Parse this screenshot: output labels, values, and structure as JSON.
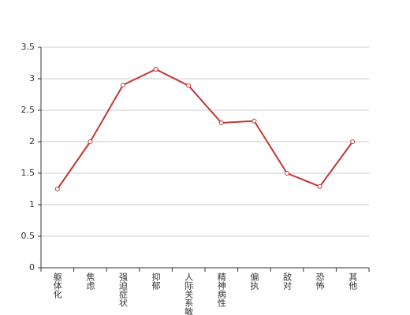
{
  "chart_data": {
    "type": "line",
    "categories": [
      "躯体化",
      "焦虑",
      "强迫症状",
      "抑郁",
      "人际关系敏感",
      "精神病性",
      "偏执",
      "敌对",
      "恐怖",
      "其他"
    ],
    "series": [
      {
        "name": null,
        "color": "#c23531",
        "values": [
          1.25,
          2.0,
          2.9,
          3.15,
          2.89,
          2.3,
          2.33,
          1.5,
          1.29,
          2.0
        ]
      }
    ],
    "ylim": [
      0,
      3.5
    ],
    "yticks": [
      0,
      0.5,
      1,
      1.5,
      2,
      2.5,
      3,
      3.5
    ],
    "grid": true
  }
}
